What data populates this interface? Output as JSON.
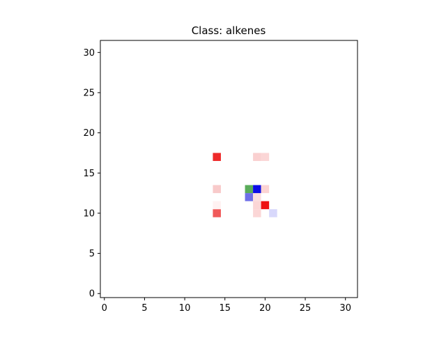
{
  "chart_data": {
    "type": "heatmap",
    "title": "Class: alkenes",
    "xlabel": "",
    "ylabel": "",
    "grid_shape": [
      32,
      32
    ],
    "xlim": [
      -0.5,
      31.5
    ],
    "ylim": [
      31.5,
      -0.5
    ],
    "x_ticks": [
      0,
      5,
      10,
      15,
      20,
      25,
      30
    ],
    "y_ticks": [
      0,
      5,
      10,
      15,
      20,
      25,
      30
    ],
    "grid": false,
    "legend": "none",
    "background_color": "#ffffff",
    "cells": [
      {
        "x": 14,
        "y": 11,
        "color": "#f05a5a"
      },
      {
        "x": 19,
        "y": 11,
        "color": "#fbd6d6"
      },
      {
        "x": 21,
        "y": 11,
        "color": "#d8d8fb"
      },
      {
        "x": 14,
        "y": 12,
        "color": "#fff2f2"
      },
      {
        "x": 19,
        "y": 12,
        "color": "#fbd6d6"
      },
      {
        "x": 20,
        "y": 12,
        "color": "#ee1111"
      },
      {
        "x": 18,
        "y": 13,
        "color": "#6e6ee8"
      },
      {
        "x": 19,
        "y": 13,
        "color": "#fbdede"
      },
      {
        "x": 14,
        "y": 14,
        "color": "#f8caca"
      },
      {
        "x": 18,
        "y": 14,
        "color": "#5aac5a"
      },
      {
        "x": 19,
        "y": 14,
        "color": "#0c0ce6"
      },
      {
        "x": 20,
        "y": 14,
        "color": "#fbd3d3"
      },
      {
        "x": 14,
        "y": 18,
        "color": "#ee2a2a"
      },
      {
        "x": 19,
        "y": 18,
        "color": "#fad0d0"
      },
      {
        "x": 20,
        "y": 18,
        "color": "#fbd6d6"
      }
    ]
  }
}
